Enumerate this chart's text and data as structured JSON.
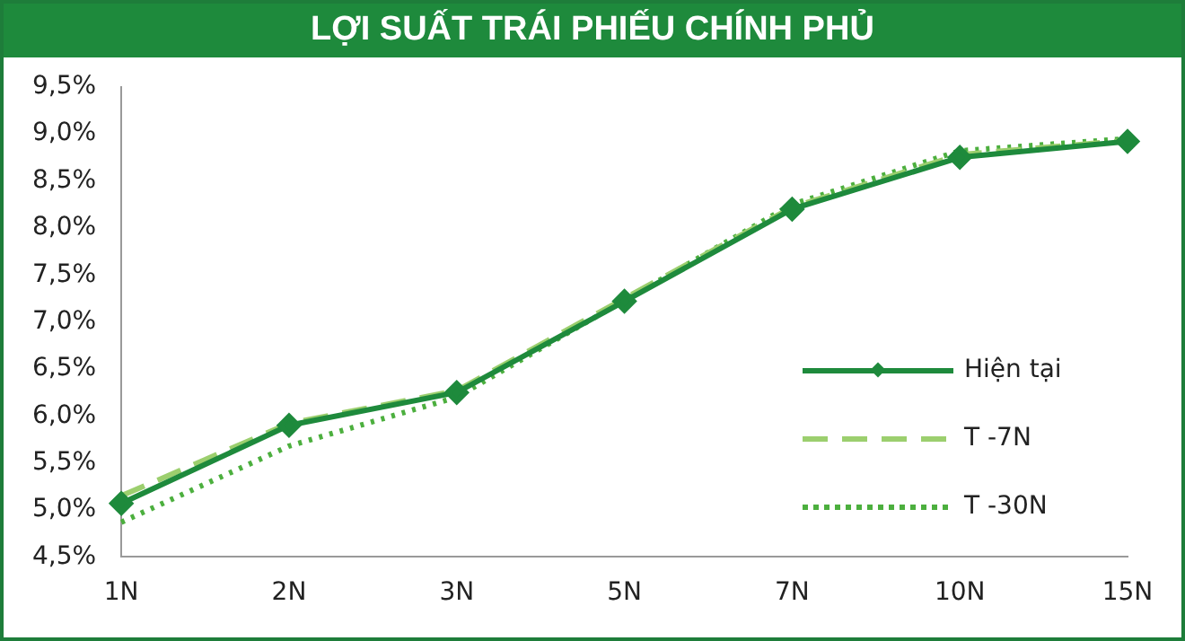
{
  "chart_data": {
    "type": "line",
    "title": "LỢI SUẤT TRÁI PHIẾU CHÍNH PHỦ",
    "categories": [
      "1N",
      "2N",
      "3N",
      "5N",
      "7N",
      "10N",
      "15N"
    ],
    "series": [
      {
        "name": "Hiện tại",
        "color": "#1e8a3c",
        "marker": "diamond",
        "line_style": "solid",
        "values": [
          5.07,
          5.9,
          6.25,
          7.22,
          8.2,
          8.75,
          8.92
        ]
      },
      {
        "name": "T -7N",
        "color": "#9ccf6e",
        "marker": "none",
        "line_style": "dashed",
        "values": [
          5.15,
          5.92,
          6.27,
          7.25,
          8.22,
          8.78,
          8.93
        ]
      },
      {
        "name": "T -30N",
        "color": "#4caf3e",
        "marker": "none",
        "line_style": "dotted",
        "values": [
          4.87,
          5.68,
          6.2,
          7.23,
          8.25,
          8.82,
          8.95
        ]
      }
    ],
    "ylim": [
      4.5,
      9.5
    ],
    "yticks": [
      {
        "value": 4.5,
        "label": "4,5%"
      },
      {
        "value": 5,
        "label": "5,0%"
      },
      {
        "value": 5.5,
        "label": "5,5%"
      },
      {
        "value": 6,
        "label": "6,0%"
      },
      {
        "value": 6.5,
        "label": "6,5%"
      },
      {
        "value": 7,
        "label": "7,0%"
      },
      {
        "value": 7.5,
        "label": "7,5%"
      },
      {
        "value": 8,
        "label": "8,0%"
      },
      {
        "value": 8.5,
        "label": "8,5%"
      },
      {
        "value": 9,
        "label": "9,0%"
      },
      {
        "value": 9.5,
        "label": "9,5%"
      }
    ],
    "grid": false,
    "legend": "right"
  }
}
